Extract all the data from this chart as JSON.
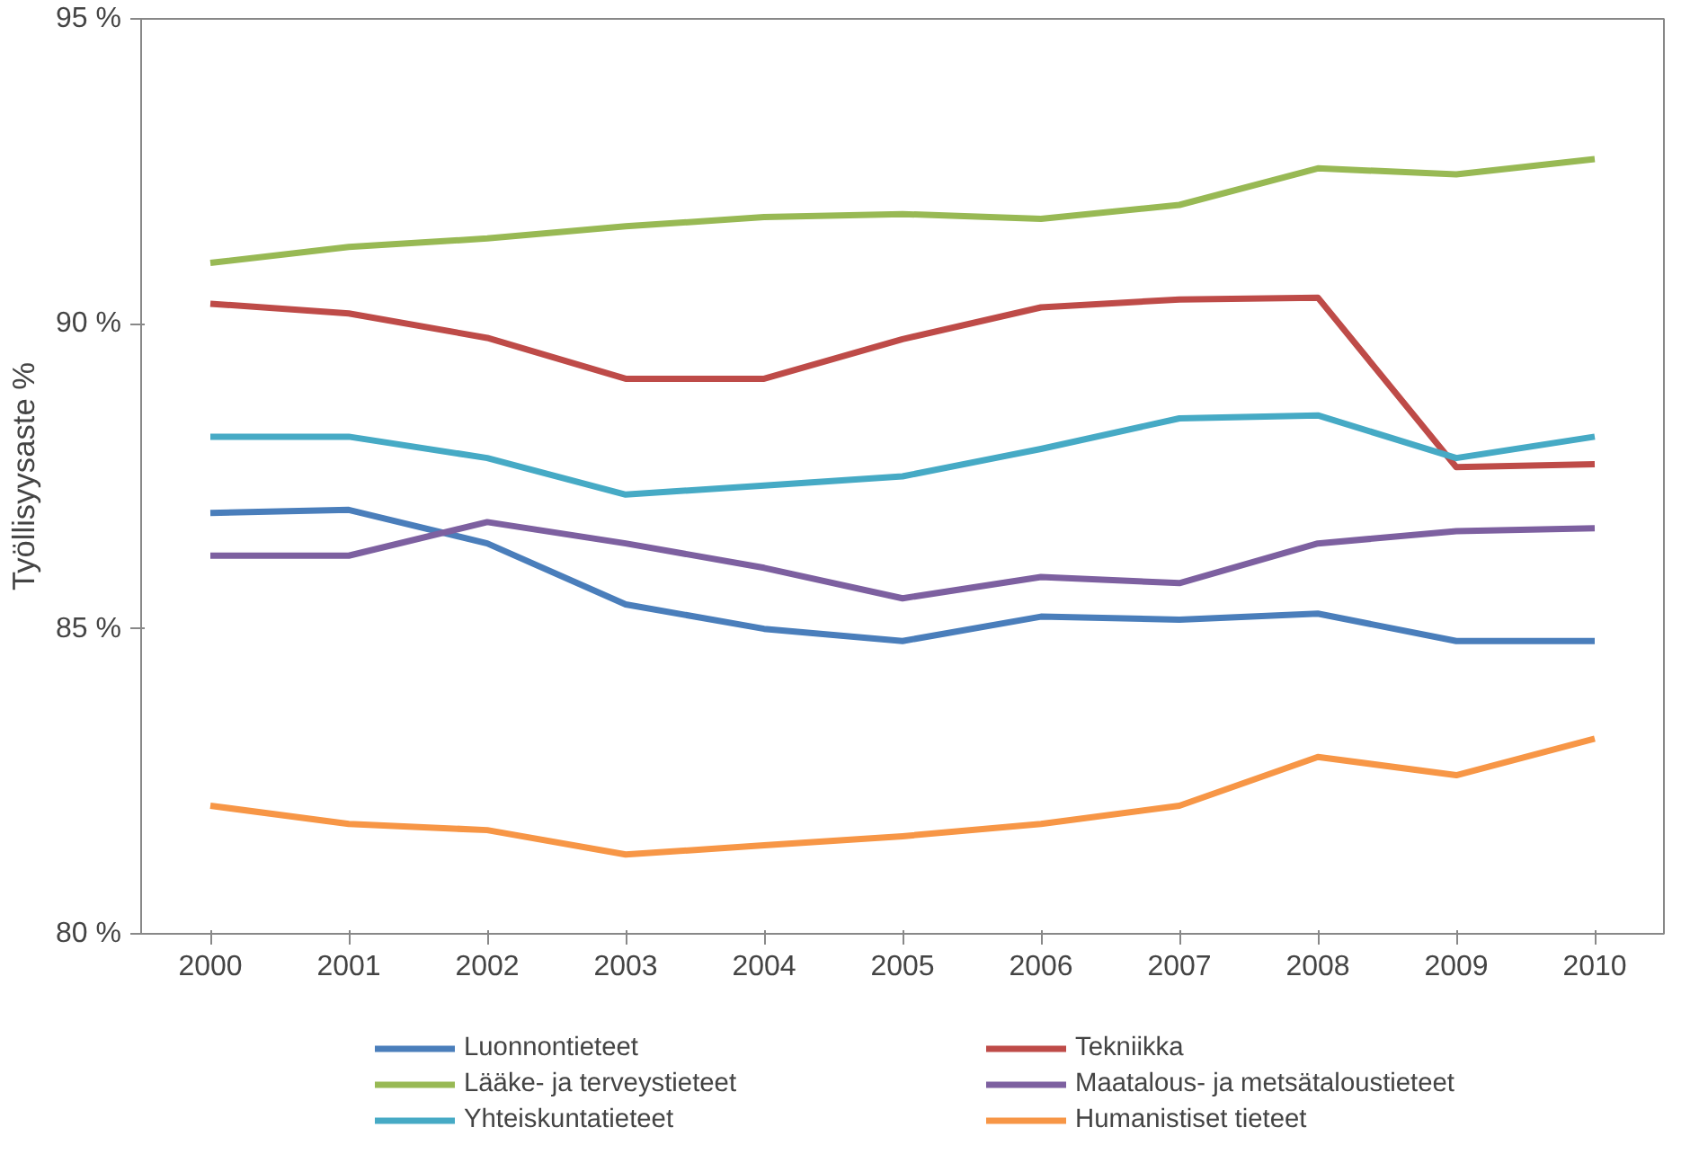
{
  "chart_data": {
    "type": "line",
    "ylabel": "Työllisyysaste %",
    "categories": [
      "2000",
      "2001",
      "2002",
      "2003",
      "2004",
      "2005",
      "2006",
      "2007",
      "2008",
      "2009",
      "2010"
    ],
    "ylim": [
      80,
      95
    ],
    "yticks": [
      {
        "value": 80,
        "label": "80 %"
      },
      {
        "value": 85,
        "label": "85 %"
      },
      {
        "value": 90,
        "label": "90 %"
      },
      {
        "value": 95,
        "label": "95 %"
      }
    ],
    "grid": false,
    "legend": "bottom",
    "marker": "none",
    "line_style": "solid",
    "series": [
      {
        "name": "Luonnontieteet",
        "color": "#4a7ebb",
        "values": [
          86.9,
          86.95,
          86.4,
          85.4,
          85.0,
          84.8,
          85.2,
          85.15,
          85.25,
          84.8,
          84.8
        ]
      },
      {
        "name": "Tekniikka",
        "color": "#be4b48",
        "values": [
          90.33,
          90.17,
          89.77,
          89.1,
          89.1,
          89.75,
          90.27,
          90.4,
          90.43,
          87.65,
          87.7
        ]
      },
      {
        "name": "Lääke- ja terveystieteet",
        "color": "#98b954",
        "values": [
          91.0,
          91.26,
          91.4,
          91.6,
          91.75,
          91.8,
          91.72,
          91.95,
          92.55,
          92.45,
          92.7
        ]
      },
      {
        "name": "Maatalous- ja metsätaloustieteet",
        "color": "#7d60a0",
        "values": [
          86.2,
          86.2,
          86.75,
          86.4,
          86.0,
          85.5,
          85.85,
          85.75,
          86.4,
          86.6,
          86.65
        ]
      },
      {
        "name": "Yhteiskuntatieteet",
        "color": "#46aac5",
        "values": [
          88.15,
          88.15,
          87.8,
          87.2,
          87.35,
          87.5,
          87.95,
          88.45,
          88.5,
          87.8,
          88.15
        ]
      },
      {
        "name": "Humanistiset tieteet",
        "color": "#f79646",
        "values": [
          82.1,
          81.8,
          81.7,
          81.3,
          81.45,
          81.6,
          81.8,
          82.1,
          82.9,
          82.6,
          83.2
        ]
      }
    ]
  }
}
